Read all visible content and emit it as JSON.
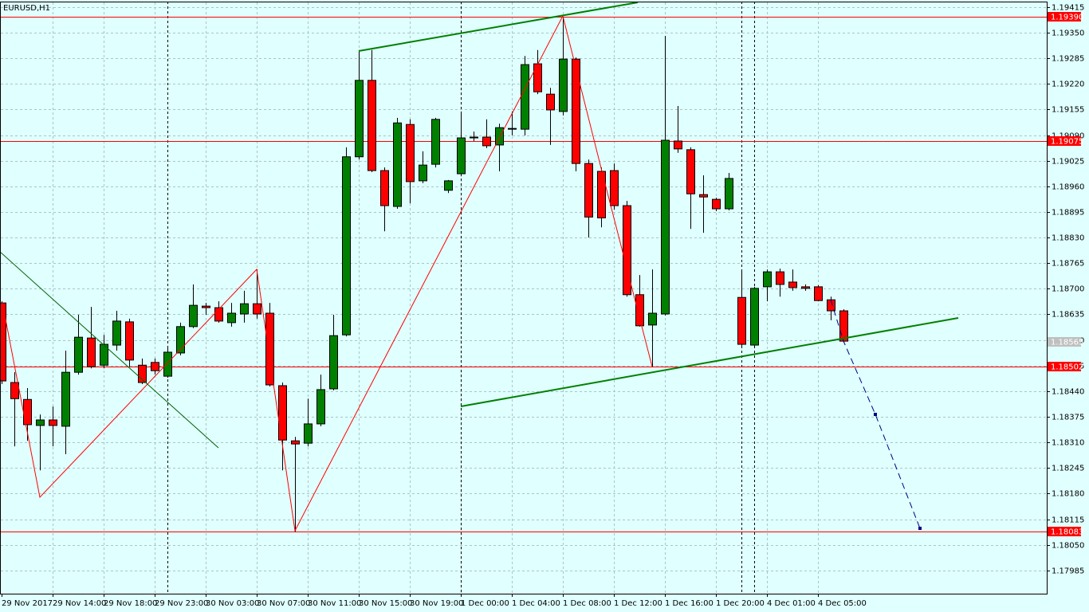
{
  "chart_data": {
    "type": "candlestick",
    "title": "EURUSD,H1",
    "categories": [
      "29 Nov 2017",
      null,
      null,
      null,
      "29 Nov 14:00",
      null,
      null,
      null,
      "29 Nov 18:00",
      null,
      null,
      null,
      "29 Nov 23:00",
      null,
      null,
      null,
      "30 Nov 03:00",
      null,
      null,
      null,
      "30 Nov 07:00",
      null,
      null,
      null,
      "30 Nov 11:00",
      null,
      null,
      null,
      "30 Nov 15:00",
      null,
      null,
      null,
      "30 Nov 19:00",
      null,
      null,
      null,
      "1 Dec 00:00",
      null,
      null,
      null,
      "1 Dec 04:00",
      null,
      null,
      null,
      "1 Dec 08:00",
      null,
      null,
      null,
      "1 Dec 12:00",
      null,
      null,
      null,
      "1 Dec 16:00",
      null,
      null,
      null,
      "1 Dec 20:00",
      null,
      null,
      null,
      "4 Dec 01:00",
      null,
      null,
      null,
      "4 Dec 05:00",
      null,
      null
    ],
    "open": [
      1.18664,
      1.18462,
      1.18419,
      1.18353,
      1.18367,
      1.18351,
      1.18488,
      1.18575,
      1.18506,
      1.18557,
      1.18616,
      1.18506,
      1.18513,
      1.18478,
      1.18537,
      1.18604,
      1.18656,
      1.18652,
      1.18614,
      1.18636,
      1.18662,
      1.18638,
      1.18454,
      1.18314,
      1.18308,
      1.18357,
      1.18446,
      1.18583,
      1.19035,
      1.19229,
      1.19,
      1.18909,
      1.19117,
      1.18974,
      1.19016,
      1.1895,
      1.18992,
      1.19083,
      1.19085,
      1.19065,
      1.19107,
      1.19105,
      1.19271,
      1.19194,
      1.1915,
      1.19283,
      1.19018,
      1.18998,
      1.19,
      1.18911,
      1.18685,
      1.18608,
      1.18636,
      1.19075,
      1.19053,
      1.18939,
      1.18927,
      1.18903,
      1.18678,
      1.18557,
      1.18705,
      1.18743,
      1.18717,
      1.18705,
      1.18705,
      1.18672,
      1.18644
    ],
    "high": [
      1.18668,
      1.18488,
      1.18448,
      1.18381,
      1.18401,
      1.18543,
      1.18634,
      1.18654,
      1.18583,
      1.18644,
      1.18624,
      1.18523,
      1.18523,
      1.18553,
      1.18614,
      1.18711,
      1.18664,
      1.18668,
      1.18664,
      1.18695,
      1.18749,
      1.18664,
      1.18462,
      1.18324,
      1.18421,
      1.18482,
      1.18634,
      1.19059,
      1.19306,
      1.19306,
      1.19008,
      1.19134,
      1.1913,
      1.19049,
      1.19134,
      1.18976,
      1.1915,
      1.19099,
      1.1913,
      1.19119,
      1.1915,
      1.19291,
      1.19306,
      1.1921,
      1.1939,
      1.19287,
      1.19028,
      1.19008,
      1.19018,
      1.18923,
      1.18735,
      1.18749,
      1.19342,
      1.19164,
      1.19059,
      1.18988,
      1.18931,
      1.18994,
      1.18749,
      1.18705,
      1.18749,
      1.18751,
      1.18749,
      1.18711,
      1.18709,
      1.1868,
      1.18648
    ],
    "low": [
      1.18458,
      1.183,
      1.18314,
      1.18239,
      1.183,
      1.1828,
      1.18482,
      1.18498,
      1.18498,
      1.18543,
      1.18502,
      1.18458,
      1.18482,
      1.18474,
      1.18531,
      1.186,
      1.18634,
      1.18614,
      1.18604,
      1.18614,
      1.18624,
      1.18452,
      1.18239,
      1.18083,
      1.183,
      1.18351,
      1.18442,
      1.18579,
      1.19028,
      1.18996,
      1.18846,
      1.18903,
      1.18917,
      1.18968,
      1.19008,
      1.18943,
      1.18988,
      1.19075,
      1.19057,
      1.18998,
      1.19089,
      1.19089,
      1.19194,
      1.19065,
      1.1914,
      1.18998,
      1.1883,
      1.18856,
      1.18901,
      1.1868,
      1.18604,
      1.18502,
      1.18632,
      1.19045,
      1.18852,
      1.18842,
      1.18897,
      1.18899,
      1.18553,
      1.18549,
      1.18668,
      1.1868,
      1.18695,
      1.18695,
      1.18668,
      1.1862,
      1.18563
    ],
    "close": [
      1.18466,
      1.18421,
      1.18355,
      1.18367,
      1.18353,
      1.18488,
      1.18577,
      1.18502,
      1.18559,
      1.18618,
      1.18519,
      1.18462,
      1.18492,
      1.18539,
      1.18604,
      1.18658,
      1.18652,
      1.18618,
      1.18638,
      1.18662,
      1.18636,
      1.18456,
      1.18316,
      1.18306,
      1.18357,
      1.18444,
      1.18581,
      1.19035,
      1.19229,
      1.19,
      1.18911,
      1.19121,
      1.18972,
      1.19014,
      1.1913,
      1.18974,
      1.19083,
      1.19085,
      1.19063,
      1.19109,
      1.19105,
      1.19269,
      1.192,
      1.19154,
      1.19283,
      1.19018,
      1.18882,
      1.1888,
      1.18911,
      1.18685,
      1.18606,
      1.18638,
      1.19077,
      1.19055,
      1.18941,
      1.18933,
      1.18903,
      1.1898,
      1.18559,
      1.18701,
      1.18743,
      1.18711,
      1.18703,
      1.18701,
      1.1867,
      1.18644,
      1.18567
    ],
    "up_color": "#008000",
    "down_color": "#ff0000",
    "ylim": [
      1.17926,
      1.19433
    ],
    "yticks": [
      {
        "value": 1.19415,
        "label": "1.19415"
      },
      {
        "value": 1.1935,
        "label": "1.19350"
      },
      {
        "value": 1.19285,
        "label": "1.19285"
      },
      {
        "value": 1.1922,
        "label": "1.19220"
      },
      {
        "value": 1.19155,
        "label": "1.19155"
      },
      {
        "value": 1.1909,
        "label": "1.19090"
      },
      {
        "value": 1.19025,
        "label": "1.19025"
      },
      {
        "value": 1.1896,
        "label": "1.18960"
      },
      {
        "value": 1.18895,
        "label": "1.18895"
      },
      {
        "value": 1.1883,
        "label": "1.18830"
      },
      {
        "value": 1.18765,
        "label": "1.18765"
      },
      {
        "value": 1.187,
        "label": "1.18700"
      },
      {
        "value": 1.18635,
        "label": "1.18635"
      },
      {
        "value": 1.1857,
        "label": "1.18570"
      },
      {
        "value": 1.18505,
        "label": "1.18505"
      },
      {
        "value": 1.1844,
        "label": "1.18440"
      },
      {
        "value": 1.18375,
        "label": "1.18375"
      },
      {
        "value": 1.1831,
        "label": "1.18310"
      },
      {
        "value": 1.18245,
        "label": "1.18245"
      },
      {
        "value": 1.1818,
        "label": "1.18180"
      },
      {
        "value": 1.18115,
        "label": "1.18115"
      },
      {
        "value": 1.1805,
        "label": "1.18050"
      },
      {
        "value": 1.17985,
        "label": "1.17985"
      }
    ],
    "grid": true,
    "levels": [
      {
        "value": 1.1939,
        "label": "1.19390",
        "color": "#ff0000"
      },
      {
        "value": 1.19075,
        "label": "1.19075",
        "color": "#ff0000"
      },
      {
        "value": 1.18502,
        "label": "1.18502",
        "color": "#ff0000"
      },
      {
        "value": 1.18083,
        "label": "1.18083",
        "color": "#ff0000"
      },
      {
        "value": 1.18565,
        "label": "1.18565",
        "color": "#c0c0c0"
      }
    ]
  }
}
